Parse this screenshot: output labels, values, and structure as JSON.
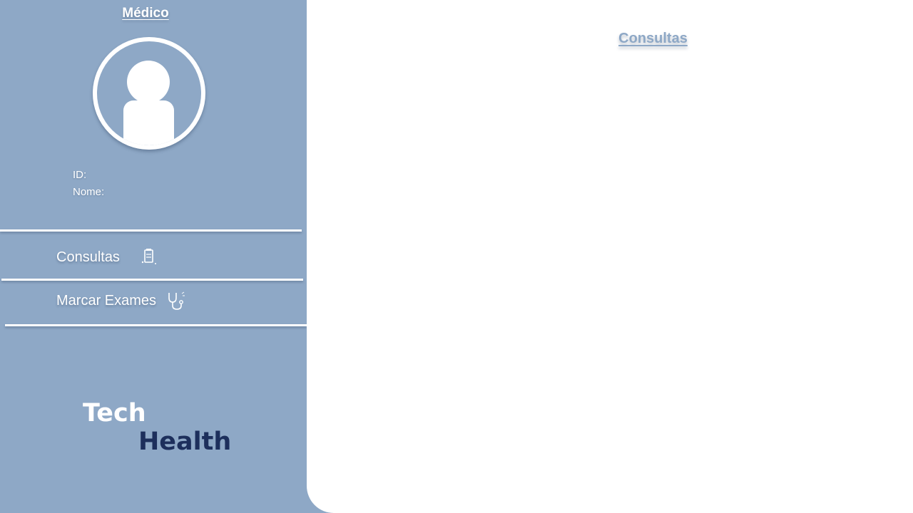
{
  "sidebar": {
    "title": "Médico",
    "id_label": "ID:",
    "name_label": "Nome:",
    "nav": [
      {
        "label": "Consultas",
        "icon": "clipboard-icon"
      },
      {
        "label": "Marcar Exames",
        "icon": "stethoscope-icon"
      }
    ],
    "logo": {
      "line1": "Tech",
      "line2": "Health"
    }
  },
  "main": {
    "title": "Consultas"
  },
  "colors": {
    "sidebar_bg": "#8ea8c6",
    "main_bg": "#ffffff",
    "logo_dark": "#1d2f5c"
  }
}
